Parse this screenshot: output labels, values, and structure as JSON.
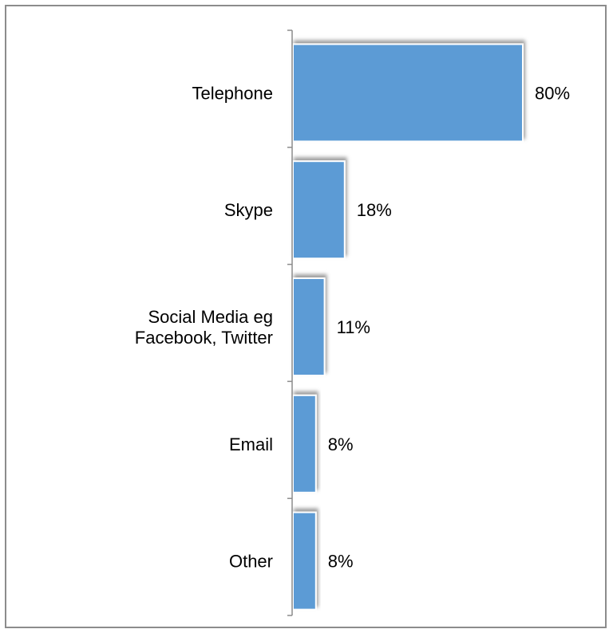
{
  "chart_data": {
    "type": "bar",
    "orientation": "horizontal",
    "categories": [
      [
        "Telephone"
      ],
      [
        "Skype"
      ],
      [
        "Social Media eg",
        "Facebook, Twitter"
      ],
      [
        "Email"
      ],
      [
        "Other"
      ]
    ],
    "values": [
      80,
      18,
      11,
      8,
      8
    ],
    "value_labels": [
      "80%",
      "18%",
      "11%",
      "8%",
      "8%"
    ],
    "xlim": [
      0,
      100
    ],
    "title": "",
    "xlabel": "",
    "ylabel": "",
    "grid": false,
    "legend": false,
    "colors": {
      "bar": "#5b9bd5",
      "bar_shadow": "#a6a6a6",
      "axis": "#8c8c8c",
      "frame": "#8c8c8c"
    }
  }
}
